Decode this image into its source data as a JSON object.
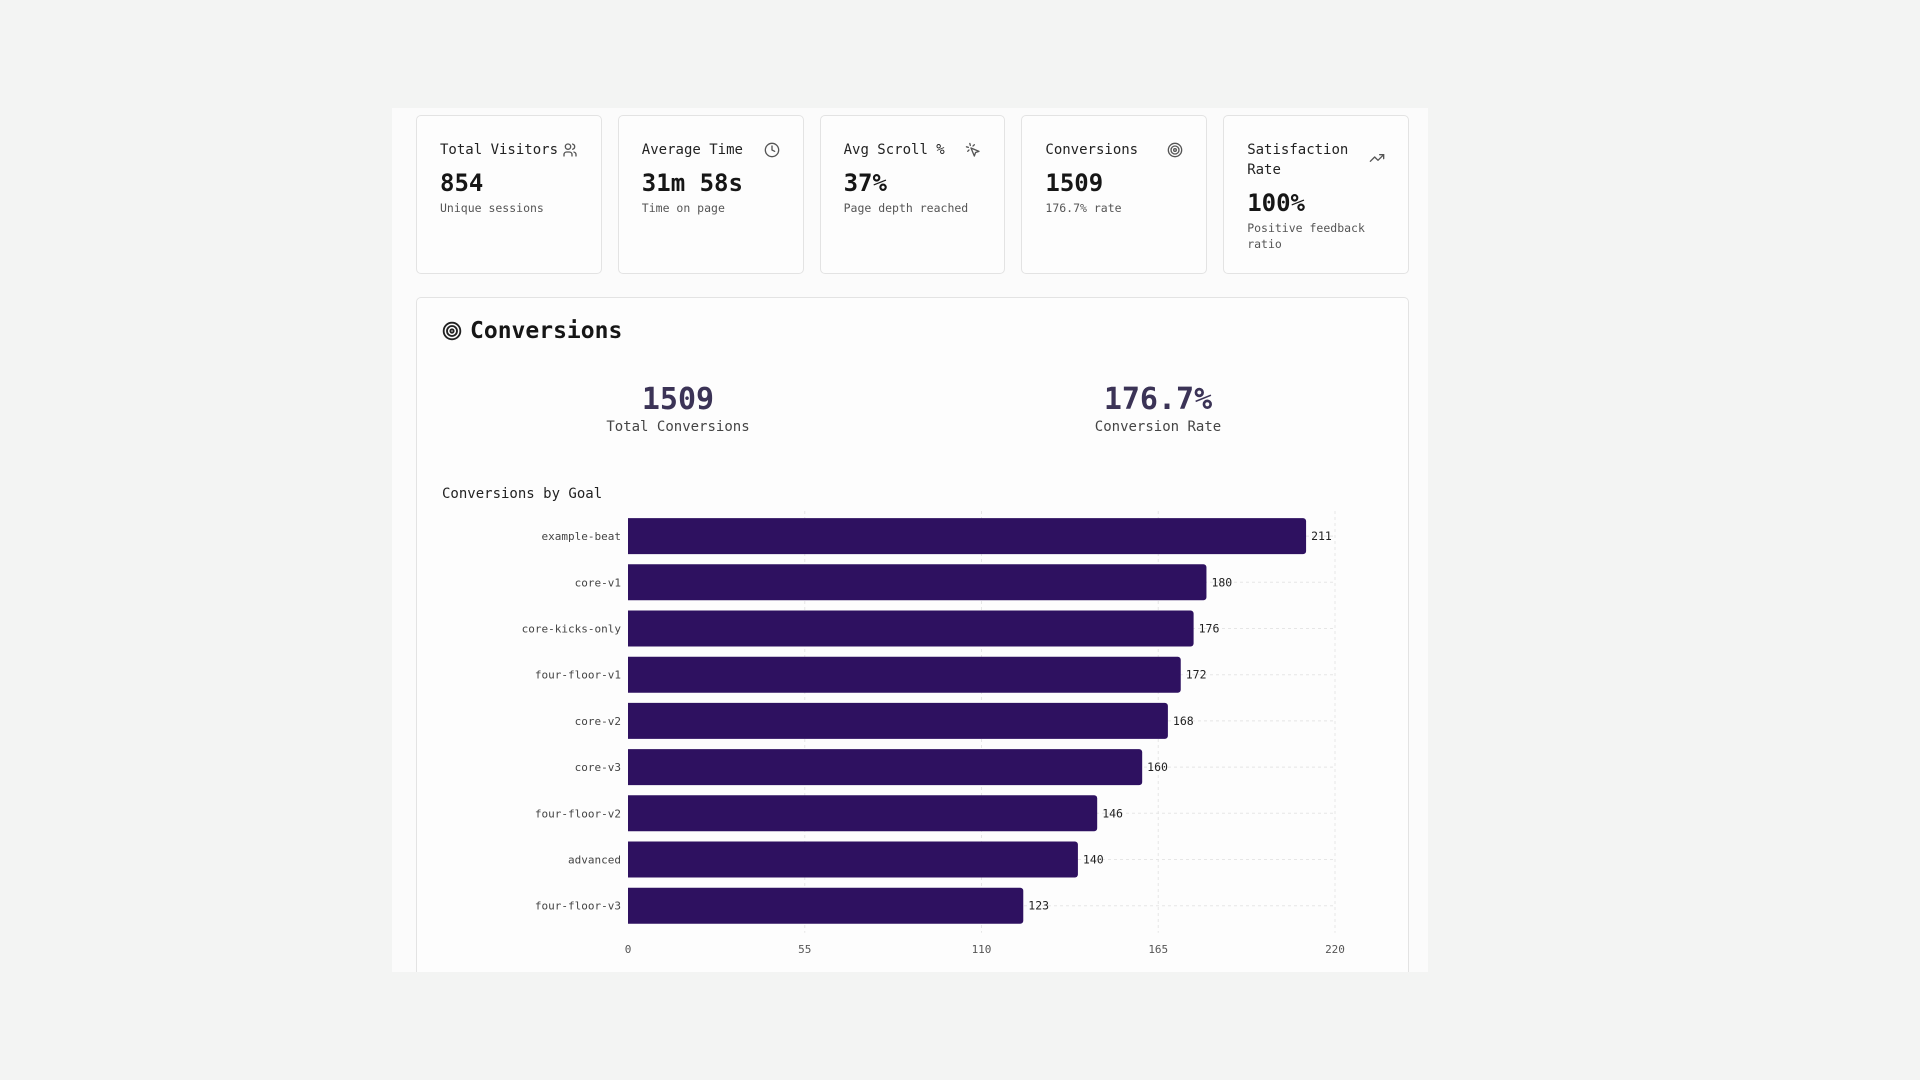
{
  "cards": [
    {
      "title": "Total Visitors",
      "icon": "users-icon",
      "value": "854",
      "sub": "Unique sessions"
    },
    {
      "title": "Average Time",
      "icon": "clock-icon",
      "value": "31m 58s",
      "sub": "Time on page"
    },
    {
      "title": "Avg Scroll %",
      "icon": "pointer-click-icon",
      "value": "37%",
      "sub": "Page depth reached"
    },
    {
      "title": "Conversions",
      "icon": "target-icon",
      "value": "1509",
      "sub": "176.7% rate"
    },
    {
      "title": "Satisfaction Rate",
      "icon": "trending-up-icon",
      "value": "100%",
      "sub": "Positive feedback ratio"
    }
  ],
  "conversions": {
    "title": "Conversions",
    "icon": "target-icon",
    "total_value": "1509",
    "total_label": "Total Conversions",
    "rate_value": "176.7%",
    "rate_label": "Conversion Rate",
    "chart_title": "Conversions by Goal"
  },
  "colors": {
    "bar": "#2e1160",
    "stat": "#3b3356",
    "grid": "#e6e6e6"
  },
  "chart_data": {
    "type": "bar",
    "orientation": "horizontal",
    "title": "Conversions by Goal",
    "categories": [
      "example-beat",
      "core-v1",
      "core-kicks-only",
      "four-floor-v1",
      "core-v2",
      "core-v3",
      "four-floor-v2",
      "advanced",
      "four-floor-v3"
    ],
    "values": [
      211,
      180,
      176,
      172,
      168,
      160,
      146,
      140,
      123
    ],
    "xlim": [
      0,
      220
    ],
    "xticks": [
      0,
      55,
      110,
      165,
      220
    ],
    "grid": true,
    "data_labels": true
  }
}
